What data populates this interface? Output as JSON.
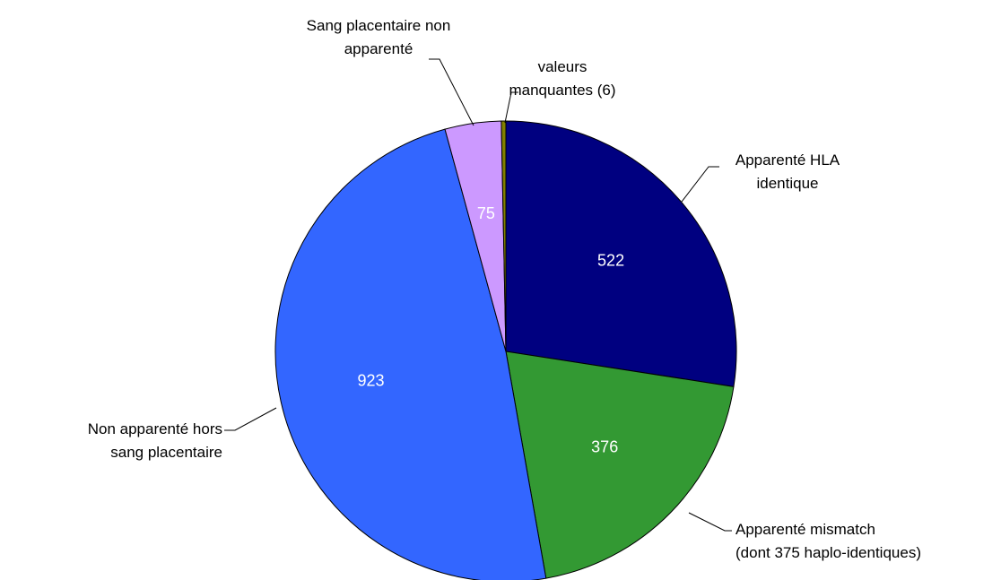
{
  "chart_data": {
    "type": "pie",
    "categories": [
      "Apparenté HLA\nidentique",
      "Apparenté mismatch\n(dont 375 haplo-identiques)",
      "Non apparenté hors\nsang placentaire",
      "Sang placentaire non\napparenté",
      "valeurs\nmanquantes (6)"
    ],
    "values": [
      522,
      376,
      923,
      75,
      6
    ],
    "colors": [
      "#000080",
      "#339933",
      "#3366ff",
      "#cc99ff",
      "#808000"
    ]
  }
}
